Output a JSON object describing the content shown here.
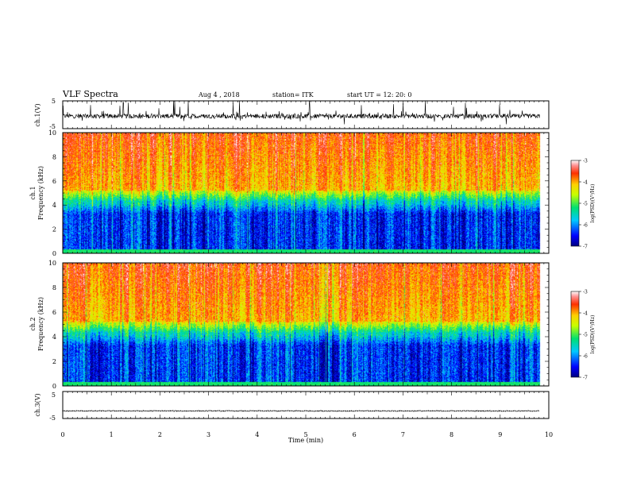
{
  "header": {
    "title": "VLF Spectra",
    "date": "Aug 4 , 2018",
    "station": "station= ITK",
    "start": "start UT =   12: 20: 0"
  },
  "chart_data": [
    {
      "type": "line",
      "panel": "ch1-waveform",
      "ylabel": "ch.1(V)",
      "ylim": [
        -5,
        5
      ],
      "yticks": [
        "5",
        "-5"
      ],
      "baseline": -0.5,
      "note_values": "dense noisy voltage trace between about -5 and 5 V"
    },
    {
      "type": "heatmap",
      "panel": "ch1-spectrogram",
      "ylabel": "Frequency (kHz)",
      "sublabel": "ch.1",
      "ylim": [
        0,
        10
      ],
      "yticks": [
        "0",
        "2",
        "4",
        "6",
        "8",
        "10"
      ],
      "colorbar": {
        "ticks": [
          "-3",
          "-4",
          "-5",
          "-6",
          "-7"
        ],
        "label": "log(PSD)(V²/Hz)",
        "range": [
          -7,
          -3
        ]
      }
    },
    {
      "type": "heatmap",
      "panel": "ch2-spectrogram",
      "ylabel": "Frequency (kHz)",
      "sublabel": "ch.2",
      "ylim": [
        0,
        10
      ],
      "yticks": [
        "0",
        "2",
        "4",
        "6",
        "8",
        "10"
      ],
      "colorbar": {
        "ticks": [
          "-3",
          "-4",
          "-5",
          "-6",
          "-7"
        ],
        "label": "log(PSD)(V²/Hz)",
        "range": [
          -7,
          -3
        ]
      }
    },
    {
      "type": "line",
      "panel": "ch3-waveform",
      "ylabel": "ch.3(V)",
      "ylim": [
        -5,
        5
      ],
      "yticks": [
        "5",
        "-5"
      ],
      "baseline": -2.2
    }
  ],
  "xaxis": {
    "label": "Time (min)",
    "range": [
      0,
      10
    ],
    "ticks": [
      "0",
      "1",
      "2",
      "3",
      "4",
      "5",
      "6",
      "7",
      "8",
      "9",
      "10"
    ],
    "data_end": 9.82
  }
}
